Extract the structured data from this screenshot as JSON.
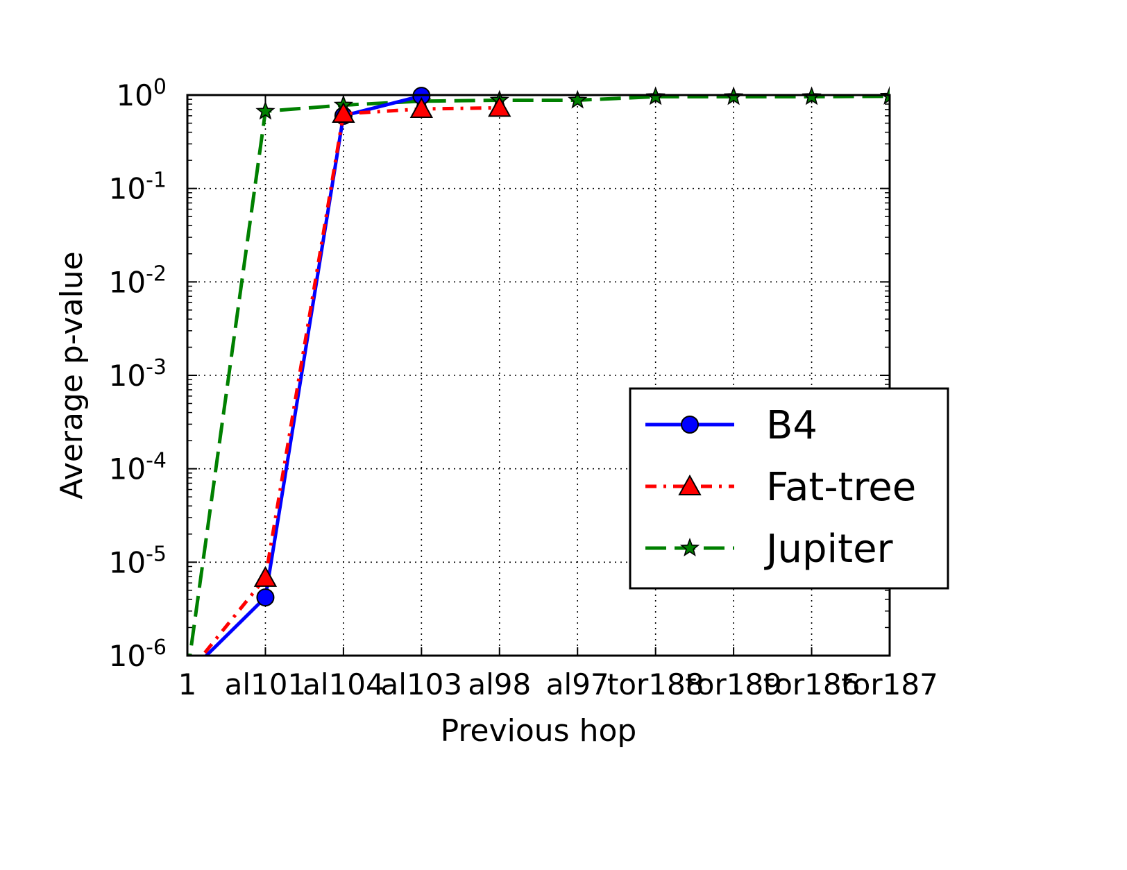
{
  "chart_data": {
    "type": "line",
    "title": "",
    "xlabel": "Previous hop",
    "ylabel": "Average p-value",
    "yscale": "log",
    "ylim": [
      1e-06,
      1
    ],
    "x_tick_labels": [
      "1",
      "al101",
      "al104",
      "al103",
      "al98",
      "al97",
      "tor188",
      "tor189",
      "tor186",
      "tor187"
    ],
    "y_tick_labels": [
      {
        "base": "10",
        "exp": "0"
      },
      {
        "base": "10",
        "exp": "-1"
      },
      {
        "base": "10",
        "exp": "-2"
      },
      {
        "base": "10",
        "exp": "-3"
      },
      {
        "base": "10",
        "exp": "-4"
      },
      {
        "base": "10",
        "exp": "-5"
      },
      {
        "base": "10",
        "exp": "-6"
      }
    ],
    "grid": true,
    "legend_position": "center-right",
    "series": [
      {
        "name": "B4",
        "color": "#0000ff",
        "marker": "circle",
        "linestyle": "solid",
        "x": [
          "1",
          "al101",
          "al104",
          "al103"
        ],
        "y": [
          1e-09,
          4.2e-06,
          0.6,
          0.98
        ]
      },
      {
        "name": "Fat-tree",
        "color": "#ff0000",
        "marker": "triangle",
        "linestyle": "dashdot",
        "x": [
          "1",
          "al101",
          "al104",
          "al103",
          "al98"
        ],
        "y": [
          1e-09,
          6.8e-06,
          0.63,
          0.71,
          0.73
        ]
      },
      {
        "name": "Jupiter",
        "color": "#008000",
        "marker": "star",
        "linestyle": "dashed",
        "x": [
          "1",
          "al101",
          "al104",
          "al103",
          "al98",
          "al97",
          "tor188",
          "tor189",
          "tor186",
          "tor187"
        ],
        "y": [
          1e-09,
          0.67,
          0.78,
          0.86,
          0.88,
          0.88,
          0.96,
          0.96,
          0.96,
          0.97
        ]
      }
    ]
  }
}
